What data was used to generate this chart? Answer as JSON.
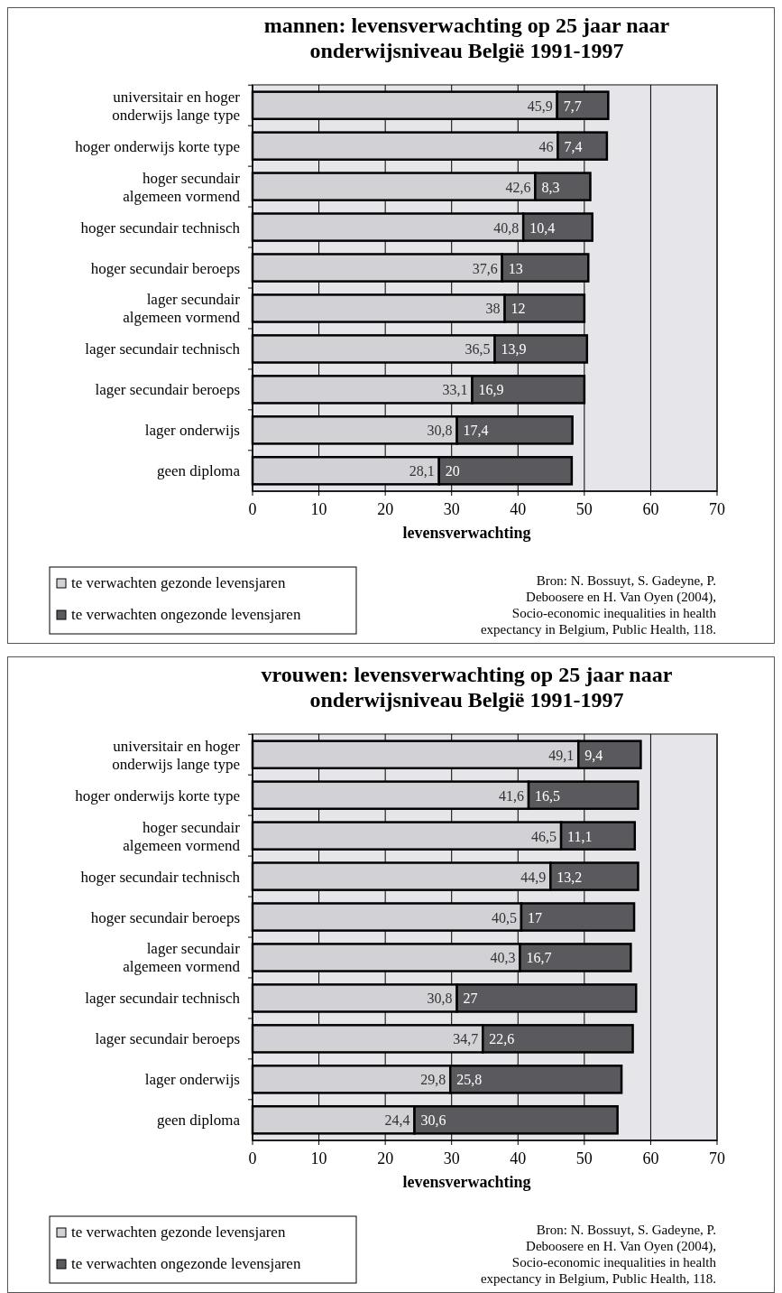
{
  "chart_data": [
    {
      "type": "bar",
      "orientation": "horizontal",
      "stacked": true,
      "title": "mannen: levensverwachting op 25 jaar naar onderwijsniveau België 1991-1997",
      "xlabel": "levensverwachting",
      "categories": [
        "universitair en hoger onderwijs lange type",
        "hoger onderwijs korte type",
        "hoger secundair algemeen vormend",
        "hoger secundair technisch",
        "hoger secundair beroeps",
        "lager secundair algemeen vormend",
        "lager secundair technisch",
        "lager secundair beroeps",
        "lager onderwijs",
        "geen diploma"
      ],
      "series": [
        {
          "name": "te verwachten gezonde levensjaren",
          "color": "#d2d2d6",
          "values": [
            45.9,
            46,
            42.6,
            40.8,
            37.6,
            38,
            36.5,
            33.1,
            30.8,
            28.1
          ],
          "value_labels": [
            "45,9",
            "46",
            "42,6",
            "40,8",
            "37,6",
            "38",
            "36,5",
            "33,1",
            "30,8",
            "28,1"
          ]
        },
        {
          "name": "te verwachten ongezonde levensjaren",
          "color": "#5a5a5e",
          "values": [
            7.7,
            7.4,
            8.3,
            10.4,
            13,
            12,
            13.9,
            16.9,
            17.4,
            20
          ],
          "value_labels": [
            "7,7",
            "7,4",
            "8,3",
            "10,4",
            "13",
            "12",
            "13,9",
            "16,9",
            "17,4",
            "20"
          ]
        }
      ],
      "xlim": [
        0,
        70
      ],
      "xticks": [
        0,
        10,
        20,
        30,
        40,
        50,
        60,
        70
      ],
      "grid": "x",
      "legend": "bottom left",
      "annotations": [
        "Bron: N. Bossuyt, S. Gadeyne, P.",
        "Deboosere en H. Van Oyen (2004),",
        "Socio-economic inequalities in health",
        "expectancy in Belgium, Public Health, 118."
      ]
    },
    {
      "type": "bar",
      "orientation": "horizontal",
      "stacked": true,
      "title": "vrouwen: levensverwachting op 25 jaar naar onderwijsniveau België 1991-1997",
      "xlabel": "levensverwachting",
      "categories": [
        "universitair en hoger onderwijs lange type",
        "hoger onderwijs korte type",
        "hoger secundair algemeen vormend",
        "hoger secundair technisch",
        "hoger secundair beroeps",
        "lager secundair algemeen vormend",
        "lager secundair technisch",
        "lager secundair beroeps",
        "lager onderwijs",
        "geen diploma"
      ],
      "series": [
        {
          "name": "te verwachten gezonde levensjaren",
          "color": "#d2d2d6",
          "values": [
            49.1,
            41.6,
            46.5,
            44.9,
            40.5,
            40.3,
            30.8,
            34.7,
            29.8,
            24.4
          ],
          "value_labels": [
            "49,1",
            "41,6",
            "46,5",
            "44,9",
            "40,5",
            "40,3",
            "30,8",
            "34,7",
            "29,8",
            "24,4"
          ]
        },
        {
          "name": "te verwachten ongezonde levensjaren",
          "color": "#5a5a5e",
          "values": [
            9.4,
            16.5,
            11.1,
            13.2,
            17,
            16.7,
            27,
            22.6,
            25.8,
            30.6
          ],
          "value_labels": [
            "9,4",
            "16,5",
            "11,1",
            "13,2",
            "17",
            "16,7",
            "27",
            "22,6",
            "25,8",
            "30,6"
          ]
        }
      ],
      "xlim": [
        0,
        70
      ],
      "xticks": [
        0,
        10,
        20,
        30,
        40,
        50,
        60,
        70
      ],
      "grid": "x",
      "legend": "bottom left",
      "annotations": [
        "Bron: N. Bossuyt, S. Gadeyne, P.",
        "Deboosere en H. Van Oyen (2004),",
        "Socio-economic inequalities in health",
        "expectancy in Belgium, Public Health, 118."
      ]
    }
  ]
}
